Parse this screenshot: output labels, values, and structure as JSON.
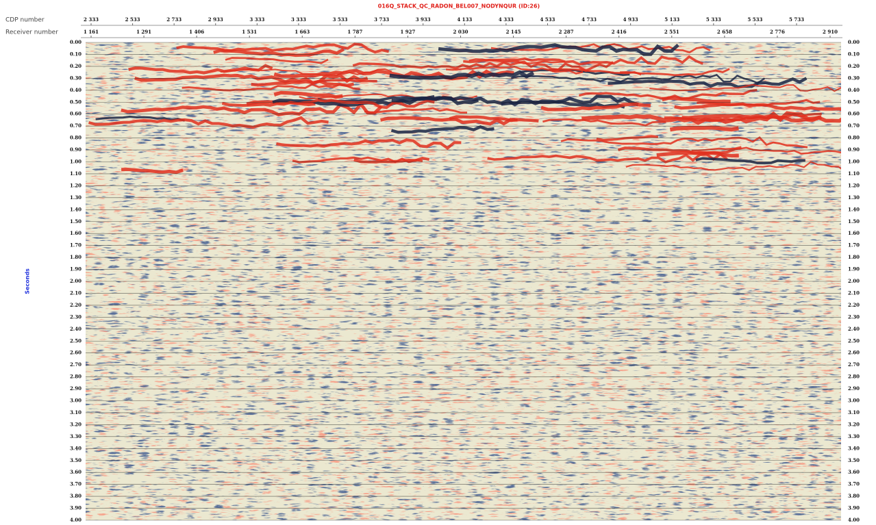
{
  "header": {
    "title": "016Q_STACK_QC_RADON_BEL007_NODYNQUR (ID:26)"
  },
  "axes": {
    "cdp": {
      "label": "CDP number",
      "ticks": [
        "2 333",
        "2 533",
        "2 733",
        "2 933",
        "3 333",
        "3 333",
        "3 533",
        "3 733",
        "3 933",
        "4 133",
        "4 333",
        "4 533",
        "4 733",
        "4 933",
        "5 133",
        "5 333",
        "5 533",
        "5 733"
      ]
    },
    "receiver": {
      "label": "Receiver number",
      "ticks": [
        "1 161",
        "1 291",
        "1 406",
        "1 531",
        "1 663",
        "1 787",
        "1 927",
        "2 030",
        "2 145",
        "2 287",
        "2 416",
        "2 551",
        "2 658",
        "2 776",
        "2 910"
      ]
    },
    "time": {
      "label": "Seconds",
      "ticks": [
        "0.00",
        "0.10",
        "0.20",
        "0.30",
        "0.40",
        "0.50",
        "0.60",
        "0.70",
        "0.80",
        "0.90",
        "1.00",
        "1.10",
        "1.20",
        "1.30",
        "1.40",
        "1.50",
        "1.60",
        "1.70",
        "1.80",
        "1.90",
        "2.00",
        "2.10",
        "2.20",
        "2.30",
        "2.40",
        "2.50",
        "2.60",
        "2.70",
        "2.80",
        "2.90",
        "3.00",
        "3.10",
        "3.20",
        "3.30",
        "3.40",
        "3.50",
        "3.60",
        "3.70",
        "3.80",
        "3.90",
        "4.00"
      ]
    }
  }
}
